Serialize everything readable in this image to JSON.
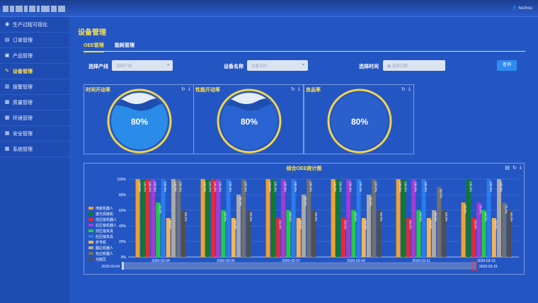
{
  "header": {
    "user": "hezhou"
  },
  "sidebar": {
    "items": [
      {
        "label": "生产过程可视化",
        "icon": "eye-icon",
        "active": false
      },
      {
        "label": "订单管理",
        "icon": "document-icon",
        "active": false
      },
      {
        "label": "产品管理",
        "icon": "box-icon",
        "active": false
      },
      {
        "label": "设备管理",
        "icon": "pencil-icon",
        "active": true
      },
      {
        "label": "报警管理",
        "icon": "alarm-icon",
        "active": false
      },
      {
        "label": "质量管理",
        "icon": "grid-icon",
        "active": false
      },
      {
        "label": "环境管理",
        "icon": "grid-icon",
        "active": false
      },
      {
        "label": "安全管理",
        "icon": "grid-icon",
        "active": false
      },
      {
        "label": "系统管理",
        "icon": "grid-icon",
        "active": false
      }
    ]
  },
  "page": {
    "title": "设备管理"
  },
  "tabs": [
    {
      "label": "OEE管理",
      "active": true
    },
    {
      "label": "能耗管理",
      "active": false
    }
  ],
  "filters": {
    "line_label": "选择产线",
    "line_placeholder": "选择产线",
    "device_label": "设备名称",
    "device_placeholder": "设备名称",
    "time_label": "选择时间",
    "time_placeholder": "选择日期",
    "query_label": "查询"
  },
  "gauges": [
    {
      "title": "时间开动率",
      "value": "80%",
      "fraction": 0.8
    },
    {
      "title": "性能开动率",
      "value": "80%",
      "fraction": 0.8
    },
    {
      "title": "良品率",
      "value": "80%",
      "fraction": 0.8
    }
  ],
  "chart_data": {
    "type": "bar",
    "title": "综合OEE统计图",
    "categories": [
      "2020-03-04",
      "2020-03-05",
      "2020-03-07",
      "2020-03-09",
      "2020-03-11",
      "2020-03-15"
    ],
    "y_ticks": [
      "0%",
      "20%",
      "40%",
      "60%",
      "80%",
      "100%"
    ],
    "ylim": [
      0,
      100
    ],
    "bar_label_suffix": ".0%",
    "legend_placement": "left",
    "series": [
      {
        "name": "喷胶机器人",
        "color": "#f0a030",
        "values": [
          100,
          100,
          100,
          100,
          100,
          70
        ]
      },
      {
        "name": "激光焊接机",
        "color": "#0f7a2a",
        "values": [
          100,
          100,
          100,
          100,
          100,
          100
        ]
      },
      {
        "name": "前压窗机器人",
        "color": "#e02a3a",
        "values": [
          100,
          100,
          50,
          50,
          50,
          50
        ]
      },
      {
        "name": "后压窗机器人",
        "color": "#a23bd6",
        "values": [
          100,
          100,
          100,
          100,
          100,
          70
        ]
      },
      {
        "name": "前压窗夹具",
        "color": "#22cc44",
        "values": [
          70,
          60,
          60,
          60,
          60,
          60
        ]
      },
      {
        "name": "后压窗夹具",
        "color": "#2a7bf0",
        "values": [
          100,
          100,
          100,
          100,
          100,
          100
        ]
      },
      {
        "name": "折弯机",
        "color": "#f3b35a",
        "values": [
          50,
          50,
          50,
          50,
          50,
          50
        ]
      },
      {
        "name": "翻边机器人",
        "color": "#a9a9a9",
        "values": [
          100,
          80,
          80,
          80,
          60,
          100
        ]
      },
      {
        "name": "包边机器人",
        "color": "#707070",
        "values": [
          100,
          100,
          100,
          100,
          90,
          70
        ]
      },
      {
        "name": "功能区",
        "color": "#4f4f4f",
        "values": [
          60,
          60,
          60,
          60,
          60,
          60
        ]
      }
    ],
    "zoom": {
      "start": "2020-03-04",
      "end": "2020-03-15"
    }
  },
  "colors": {
    "accent": "#ffe24a",
    "background": "#2456c3",
    "button": "#2e8cf0"
  }
}
